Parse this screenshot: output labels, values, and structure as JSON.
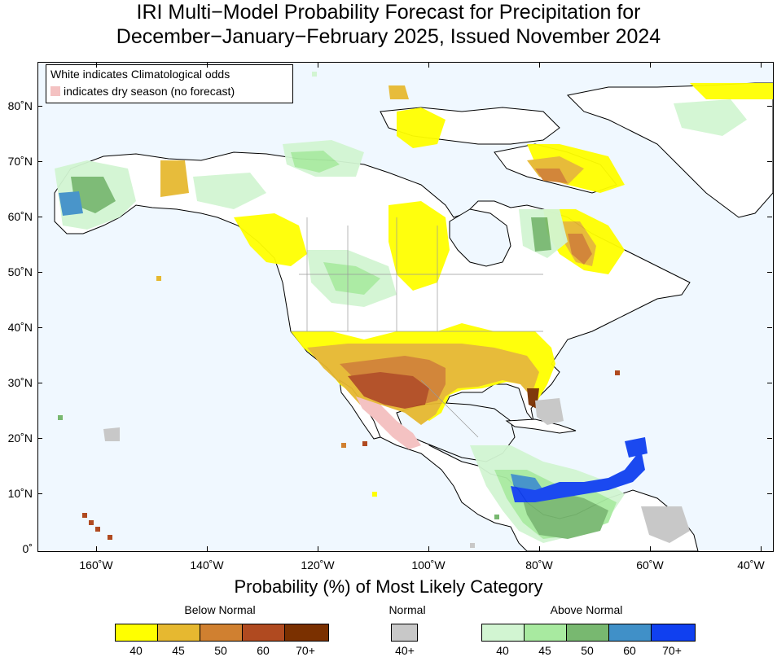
{
  "title": {
    "line1": "IRI Multi−Model Probability Forecast for Precipitation for",
    "line2": "December−January−February 2025, Issued November 2024"
  },
  "map_legend": {
    "line1": "White indicates Climatological odds",
    "line2": "indicates dry season (no forecast)",
    "dry_color": "#f4c2c2"
  },
  "lat_labels": [
    "80˚N",
    "70˚N",
    "60˚N",
    "50˚N",
    "40˚N",
    "30˚N",
    "20˚N",
    "10˚N",
    "0˚"
  ],
  "lon_labels": [
    "160˚W",
    "140˚W",
    "120˚W",
    "100˚W",
    "80˚W",
    "60˚W",
    "40˚W"
  ],
  "colorbar": {
    "title": "Probability (%) of Most Likely Category",
    "below_normal": {
      "label": "Below Normal",
      "colors": [
        "#ffff00",
        "#e6b830",
        "#d08030",
        "#b04a20",
        "#7a3000"
      ],
      "ticks": [
        "40",
        "45",
        "50",
        "60",
        "70+"
      ]
    },
    "normal": {
      "label": "Normal",
      "colors": [
        "#c8c8c8"
      ],
      "ticks": [
        "40+"
      ]
    },
    "above_normal": {
      "label": "Above Normal",
      "colors": [
        "#d2f5d2",
        "#a8eaa0",
        "#78b870",
        "#4090c8",
        "#1040f0"
      ],
      "ticks": [
        "40",
        "45",
        "50",
        "60",
        "70+"
      ]
    }
  },
  "colors": {
    "ocean": "#f0f8ff",
    "land": "#ffffff"
  }
}
